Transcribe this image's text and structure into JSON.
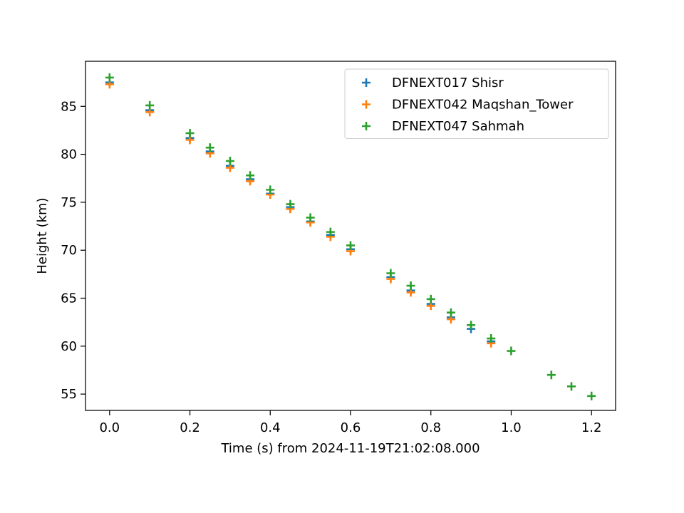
{
  "chart_data": {
    "type": "scatter",
    "title": "",
    "xlabel": "Time (s) from 2024-11-19T21:02:08.000",
    "ylabel": "Height (km)",
    "xlim": [
      -0.06,
      1.26
    ],
    "ylim": [
      53.3,
      89.7
    ],
    "xticks": [
      0.0,
      0.2,
      0.4,
      0.6,
      0.8,
      1.0,
      1.2
    ],
    "xtick_labels": [
      "0.0",
      "0.2",
      "0.4",
      "0.6",
      "0.8",
      "1.0",
      "1.2"
    ],
    "yticks": [
      55,
      60,
      65,
      70,
      75,
      80,
      85
    ],
    "ytick_labels": [
      "55",
      "60",
      "65",
      "70",
      "75",
      "80",
      "85"
    ],
    "marker": "+",
    "grid": false,
    "legend_position": "upper right",
    "series": [
      {
        "name": "DFNEXT017 Shisr",
        "color": "#1f77b4",
        "points": [
          [
            0.0,
            87.5
          ],
          [
            0.1,
            84.6
          ],
          [
            0.2,
            81.7
          ],
          [
            0.25,
            80.3
          ],
          [
            0.3,
            78.8
          ],
          [
            0.35,
            77.4
          ],
          [
            0.4,
            75.9
          ],
          [
            0.45,
            74.5
          ],
          [
            0.5,
            73.0
          ],
          [
            0.55,
            71.6
          ],
          [
            0.6,
            70.1
          ],
          [
            0.7,
            67.2
          ],
          [
            0.75,
            65.8
          ],
          [
            0.8,
            64.4
          ],
          [
            0.85,
            63.0
          ],
          [
            0.9,
            61.8
          ],
          [
            0.95,
            60.5
          ]
        ]
      },
      {
        "name": "DFNEXT042 Maqshan_Tower",
        "color": "#ff7f0e",
        "points": [
          [
            0.0,
            87.3
          ],
          [
            0.1,
            84.4
          ],
          [
            0.2,
            81.5
          ],
          [
            0.25,
            80.1
          ],
          [
            0.3,
            78.6
          ],
          [
            0.35,
            77.2
          ],
          [
            0.4,
            75.8
          ],
          [
            0.45,
            74.3
          ],
          [
            0.5,
            72.9
          ],
          [
            0.55,
            71.4
          ],
          [
            0.6,
            69.9
          ],
          [
            0.7,
            67.0
          ],
          [
            0.75,
            65.6
          ],
          [
            0.8,
            64.2
          ],
          [
            0.85,
            62.8
          ],
          [
            0.95,
            60.3
          ]
        ]
      },
      {
        "name": "DFNEXT047 Sahmah",
        "color": "#2ca02c",
        "points": [
          [
            0.0,
            88.0
          ],
          [
            0.1,
            85.1
          ],
          [
            0.2,
            82.2
          ],
          [
            0.25,
            80.7
          ],
          [
            0.3,
            79.3
          ],
          [
            0.35,
            77.8
          ],
          [
            0.4,
            76.3
          ],
          [
            0.45,
            74.8
          ],
          [
            0.5,
            73.4
          ],
          [
            0.55,
            71.9
          ],
          [
            0.6,
            70.5
          ],
          [
            0.7,
            67.6
          ],
          [
            0.75,
            66.3
          ],
          [
            0.8,
            64.9
          ],
          [
            0.85,
            63.5
          ],
          [
            0.9,
            62.2
          ],
          [
            0.95,
            60.8
          ],
          [
            1.0,
            59.5
          ],
          [
            1.1,
            57.0
          ],
          [
            1.15,
            55.8
          ],
          [
            1.2,
            54.8
          ]
        ]
      }
    ]
  }
}
